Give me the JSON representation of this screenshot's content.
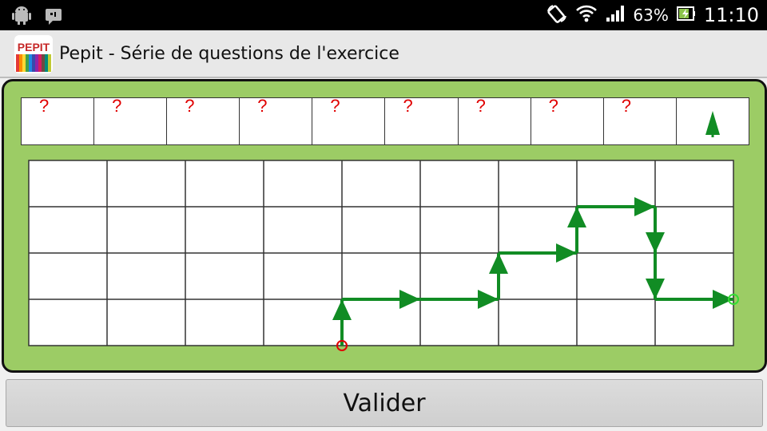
{
  "statusbar": {
    "battery": "63%",
    "time": "11:10",
    "icons": [
      "android-icon",
      "notification-icon",
      "screen-rotation-icon",
      "wifi-icon",
      "signal-icon",
      "battery-icon"
    ]
  },
  "appbar": {
    "title": "Pepit - Série de questions de l'exercice",
    "logo_text": "PEPIT"
  },
  "question_strip": {
    "cells": [
      "?",
      "?",
      "?",
      "?",
      "?",
      "?",
      "?",
      "?",
      "?",
      ""
    ],
    "last_cell_icon": "arrow-up-icon"
  },
  "grid": {
    "columns": 9,
    "rows": 4,
    "start_point": {
      "col": 4,
      "row": 4
    },
    "end_point": {
      "col": 9,
      "row": 3
    },
    "path_moves": [
      "up",
      "right",
      "right",
      "up",
      "right",
      "up",
      "right",
      "down",
      "down",
      "right"
    ],
    "colors": {
      "path": "#118c24",
      "start": "#e00000",
      "end": "#33dd33"
    }
  },
  "colors": {
    "panel_bg": "#9ccc65",
    "question_mark": "#e00000",
    "arrow_green": "#118c24"
  },
  "validate_button": {
    "label": "Valider"
  }
}
